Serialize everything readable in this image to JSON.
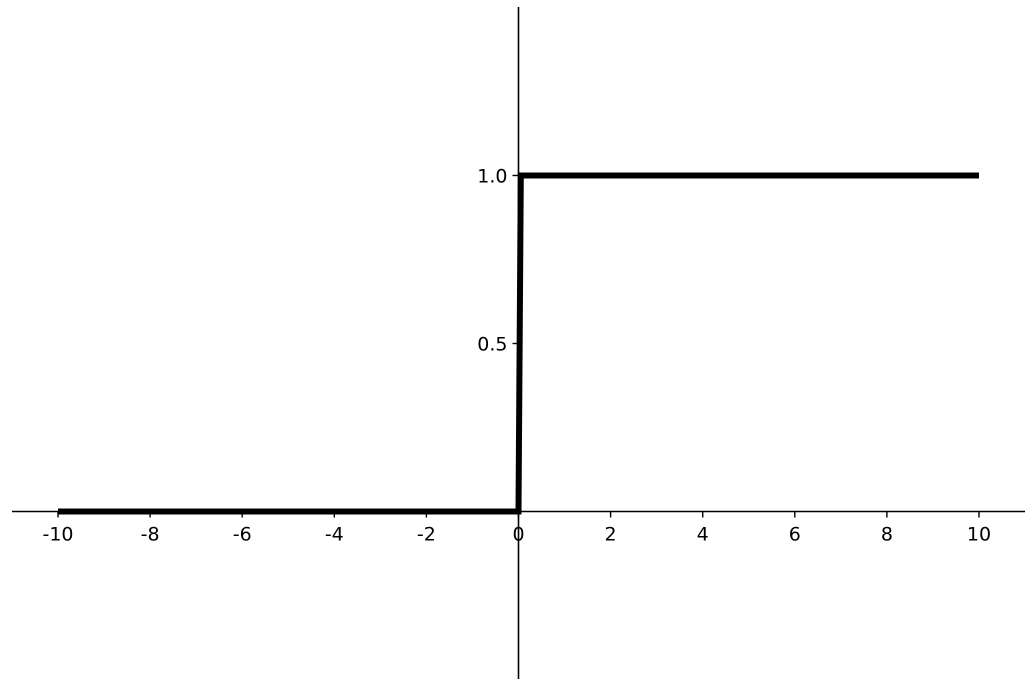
{
  "chart_data": {
    "type": "line",
    "title": "",
    "xlabel": "",
    "ylabel": "",
    "xlim": [
      -11,
      11
    ],
    "ylim": [
      -0.5,
      1.5
    ],
    "grid": false,
    "legend": "none",
    "x_ticks": [
      -10,
      -8,
      -6,
      -4,
      -2,
      0,
      2,
      4,
      6,
      8,
      10
    ],
    "x_tick_labels": [
      "-10",
      "-8",
      "-6",
      "-4",
      "-2",
      "0",
      "2",
      "4",
      "6",
      "8",
      "10"
    ],
    "y_ticks": [
      0.5,
      1.0
    ],
    "y_tick_labels": [
      "0.5",
      "1.0"
    ],
    "series": [
      {
        "color": "#000000",
        "points": [
          [
            -10,
            0
          ],
          [
            0,
            0
          ],
          [
            0.05,
            1
          ],
          [
            10,
            1
          ]
        ]
      }
    ]
  }
}
